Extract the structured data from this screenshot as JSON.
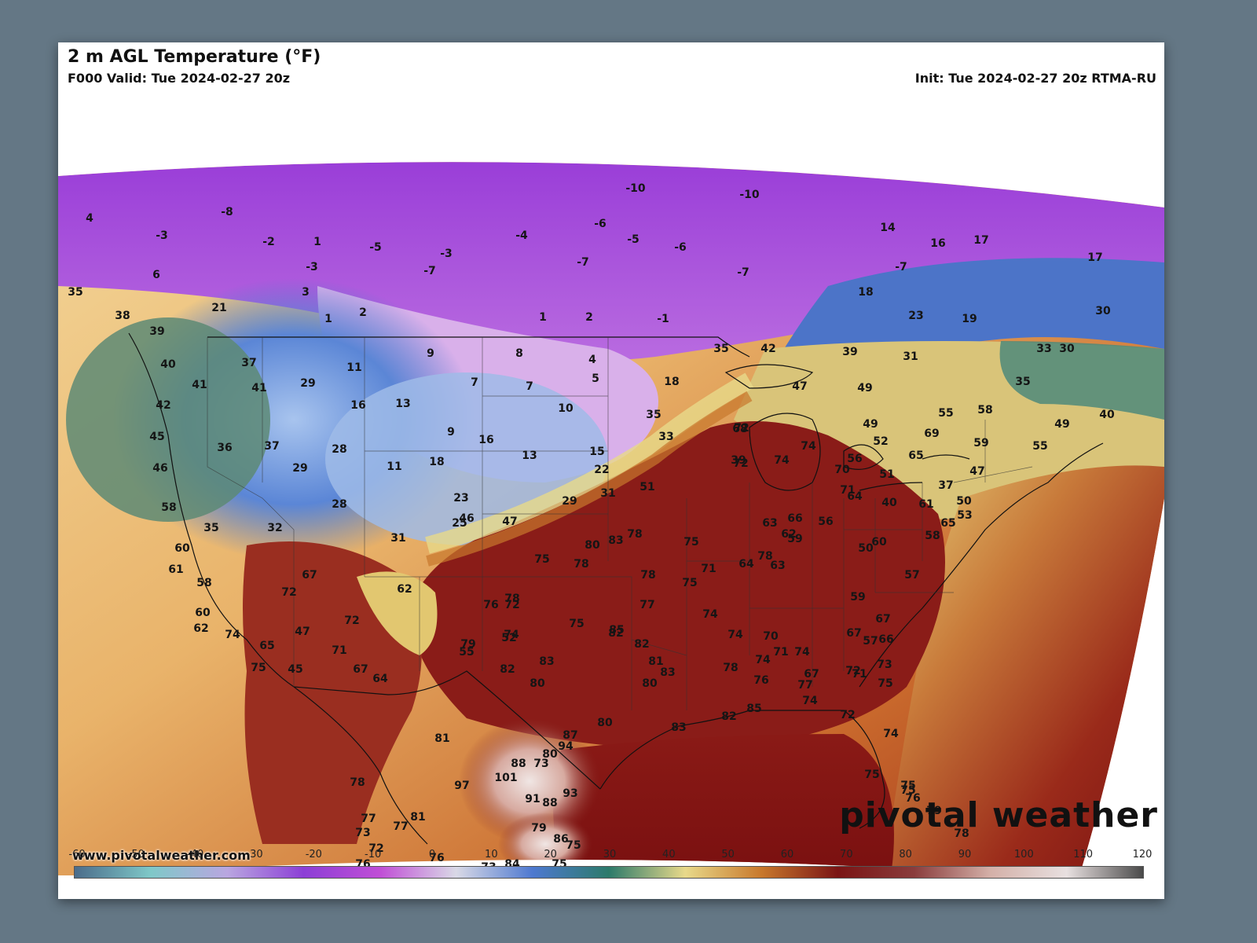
{
  "header": {
    "title": "2 m AGL Temperature (°F)",
    "valid": "F000 Valid: Tue 2024-02-27 20z",
    "init": "Init: Tue 2024-02-27 20z RTMA-RU"
  },
  "footer": {
    "website": "www.pivotalweather.com",
    "brand": "pivotal weather"
  },
  "colorbar": {
    "ticks": [
      "-60",
      "-50",
      "-40",
      "-30",
      "-20",
      "-10",
      "0",
      "10",
      "20",
      "30",
      "40",
      "50",
      "60",
      "70",
      "80",
      "90",
      "100",
      "110",
      "120"
    ],
    "stops": [
      "#4b6c8a",
      "#7fc8c8",
      "#b9a6e0",
      "#8c3fd6",
      "#c04ed6",
      "#d9d9e6",
      "#4e79d0",
      "#2c7a6a",
      "#e8d98a",
      "#c8782c",
      "#7a1414",
      "#8a3c3c",
      "#d4b0a8",
      "#e8e0e0",
      "#4a4a4a"
    ]
  },
  "temperature_labels": [
    {
      "value": "4"
    },
    {
      "value": "-8"
    },
    {
      "value": "-3"
    },
    {
      "value": "-2"
    },
    {
      "value": "1"
    },
    {
      "value": "-5"
    },
    {
      "value": "-3"
    },
    {
      "value": "-6"
    },
    {
      "value": "-10"
    },
    {
      "value": "-10"
    },
    {
      "value": "-4"
    },
    {
      "value": "-5"
    },
    {
      "value": "-6"
    },
    {
      "value": "-7"
    },
    {
      "value": "-7"
    },
    {
      "value": "-7"
    },
    {
      "value": "-3"
    },
    {
      "value": "6"
    },
    {
      "value": "3"
    },
    {
      "value": "21"
    },
    {
      "value": "2"
    },
    {
      "value": "1"
    },
    {
      "value": "1"
    },
    {
      "value": "2"
    },
    {
      "value": "-1"
    },
    {
      "value": "-7"
    },
    {
      "value": "16"
    },
    {
      "value": "17"
    },
    {
      "value": "17"
    },
    {
      "value": "18"
    },
    {
      "value": "14"
    },
    {
      "value": "19"
    },
    {
      "value": "30"
    },
    {
      "value": "23"
    },
    {
      "value": "35"
    },
    {
      "value": "38"
    },
    {
      "value": "39"
    },
    {
      "value": "40"
    },
    {
      "value": "37"
    },
    {
      "value": "41"
    },
    {
      "value": "41"
    },
    {
      "value": "42"
    },
    {
      "value": "45"
    },
    {
      "value": "46"
    },
    {
      "value": "36"
    },
    {
      "value": "37"
    },
    {
      "value": "29"
    },
    {
      "value": "29"
    },
    {
      "value": "28"
    },
    {
      "value": "11"
    },
    {
      "value": "16"
    },
    {
      "value": "13"
    },
    {
      "value": "9"
    },
    {
      "value": "8"
    },
    {
      "value": "7"
    },
    {
      "value": "7"
    },
    {
      "value": "4"
    },
    {
      "value": "5"
    },
    {
      "value": "10"
    },
    {
      "value": "9"
    },
    {
      "value": "16"
    },
    {
      "value": "13"
    },
    {
      "value": "15"
    },
    {
      "value": "11"
    },
    {
      "value": "18"
    },
    {
      "value": "22"
    },
    {
      "value": "23"
    },
    {
      "value": "29"
    },
    {
      "value": "31"
    },
    {
      "value": "51"
    },
    {
      "value": "72"
    },
    {
      "value": "39"
    },
    {
      "value": "35"
    },
    {
      "value": "33"
    },
    {
      "value": "18"
    },
    {
      "value": "35"
    },
    {
      "value": "42"
    },
    {
      "value": "39"
    },
    {
      "value": "31"
    },
    {
      "value": "47"
    },
    {
      "value": "49"
    },
    {
      "value": "55"
    },
    {
      "value": "58"
    },
    {
      "value": "49"
    },
    {
      "value": "40"
    },
    {
      "value": "35"
    },
    {
      "value": "33"
    },
    {
      "value": "30"
    },
    {
      "value": "68"
    },
    {
      "value": "72"
    },
    {
      "value": "74"
    },
    {
      "value": "74"
    },
    {
      "value": "56"
    },
    {
      "value": "70"
    },
    {
      "value": "71"
    },
    {
      "value": "51"
    },
    {
      "value": "49"
    },
    {
      "value": "52"
    },
    {
      "value": "69"
    },
    {
      "value": "65"
    },
    {
      "value": "59"
    },
    {
      "value": "47"
    },
    {
      "value": "37"
    },
    {
      "value": "55"
    },
    {
      "value": "58"
    },
    {
      "value": "60"
    },
    {
      "value": "61"
    },
    {
      "value": "58"
    },
    {
      "value": "60"
    },
    {
      "value": "62"
    },
    {
      "value": "74"
    },
    {
      "value": "65"
    },
    {
      "value": "75"
    },
    {
      "value": "45"
    },
    {
      "value": "35"
    },
    {
      "value": "32"
    },
    {
      "value": "28"
    },
    {
      "value": "25"
    },
    {
      "value": "47"
    },
    {
      "value": "31"
    },
    {
      "value": "46"
    },
    {
      "value": "62"
    },
    {
      "value": "67"
    },
    {
      "value": "72"
    },
    {
      "value": "47"
    },
    {
      "value": "72"
    },
    {
      "value": "71"
    },
    {
      "value": "67"
    },
    {
      "value": "64"
    },
    {
      "value": "52"
    },
    {
      "value": "55"
    },
    {
      "value": "78"
    },
    {
      "value": "75"
    },
    {
      "value": "78"
    },
    {
      "value": "80"
    },
    {
      "value": "83"
    },
    {
      "value": "78"
    },
    {
      "value": "78"
    },
    {
      "value": "75"
    },
    {
      "value": "71"
    },
    {
      "value": "75"
    },
    {
      "value": "78"
    },
    {
      "value": "64"
    },
    {
      "value": "63"
    },
    {
      "value": "63"
    },
    {
      "value": "66"
    },
    {
      "value": "62"
    },
    {
      "value": "59"
    },
    {
      "value": "56"
    },
    {
      "value": "64"
    },
    {
      "value": "50"
    },
    {
      "value": "60"
    },
    {
      "value": "40"
    },
    {
      "value": "61"
    },
    {
      "value": "50"
    },
    {
      "value": "65"
    },
    {
      "value": "58"
    },
    {
      "value": "53"
    },
    {
      "value": "57"
    },
    {
      "value": "59"
    },
    {
      "value": "67"
    },
    {
      "value": "67"
    },
    {
      "value": "57"
    },
    {
      "value": "66"
    },
    {
      "value": "73"
    },
    {
      "value": "72"
    },
    {
      "value": "76"
    },
    {
      "value": "74"
    },
    {
      "value": "79"
    },
    {
      "value": "82"
    },
    {
      "value": "75"
    },
    {
      "value": "77"
    },
    {
      "value": "85"
    },
    {
      "value": "80"
    },
    {
      "value": "83"
    },
    {
      "value": "82"
    },
    {
      "value": "82"
    },
    {
      "value": "81"
    },
    {
      "value": "83"
    },
    {
      "value": "80"
    },
    {
      "value": "74"
    },
    {
      "value": "74"
    },
    {
      "value": "78"
    },
    {
      "value": "70"
    },
    {
      "value": "74"
    },
    {
      "value": "76"
    },
    {
      "value": "71"
    },
    {
      "value": "74"
    },
    {
      "value": "67"
    },
    {
      "value": "74"
    },
    {
      "value": "77"
    },
    {
      "value": "72"
    },
    {
      "value": "71"
    },
    {
      "value": "75"
    },
    {
      "value": "72"
    },
    {
      "value": "74"
    },
    {
      "value": "83"
    },
    {
      "value": "82"
    },
    {
      "value": "85"
    },
    {
      "value": "80"
    },
    {
      "value": "87"
    },
    {
      "value": "73"
    },
    {
      "value": "80"
    },
    {
      "value": "94"
    },
    {
      "value": "93"
    },
    {
      "value": "88"
    },
    {
      "value": "101"
    },
    {
      "value": "97"
    },
    {
      "value": "81"
    },
    {
      "value": "88"
    },
    {
      "value": "91"
    },
    {
      "value": "79"
    },
    {
      "value": "75"
    },
    {
      "value": "86"
    },
    {
      "value": "84"
    },
    {
      "value": "75"
    },
    {
      "value": "76"
    },
    {
      "value": "73"
    },
    {
      "value": "77"
    },
    {
      "value": "81"
    },
    {
      "value": "72"
    },
    {
      "value": "73"
    },
    {
      "value": "78"
    },
    {
      "value": "77"
    },
    {
      "value": "76"
    },
    {
      "value": "75"
    },
    {
      "value": "75"
    },
    {
      "value": "75"
    },
    {
      "value": "76"
    },
    {
      "value": "79"
    },
    {
      "value": "78"
    }
  ]
}
